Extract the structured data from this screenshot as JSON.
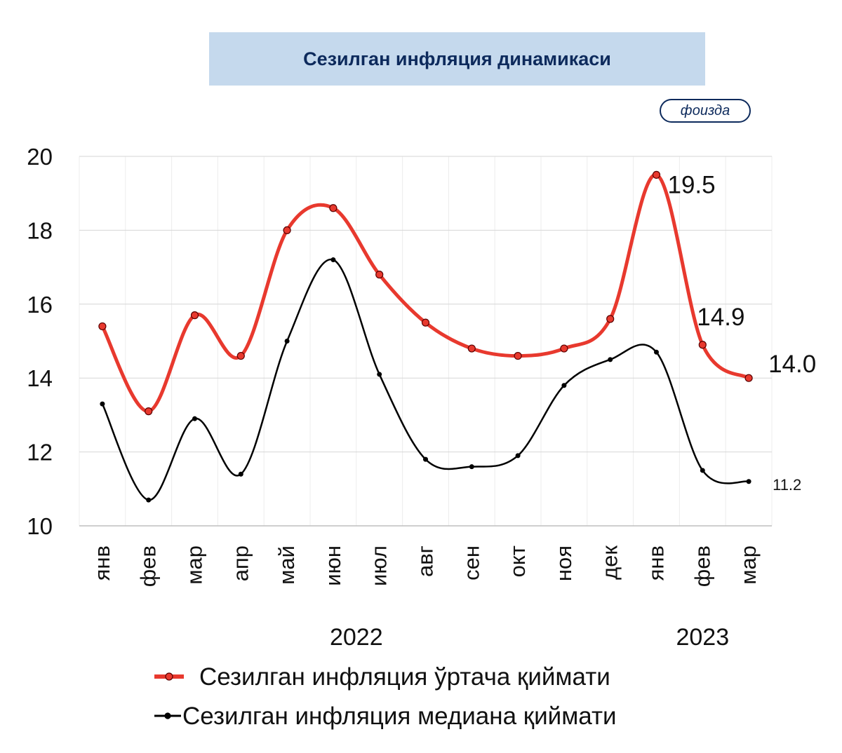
{
  "header": {
    "title": "Сезилган инфляция динамикаси",
    "unit_badge": "фоизда"
  },
  "chart_data": {
    "type": "line",
    "title": "Сезилган инфляция динамикаси",
    "unit": "фоизда",
    "categories": [
      "янв",
      "фев",
      "мар",
      "апр",
      "май",
      "июн",
      "июл",
      "авг",
      "сен",
      "окт",
      "ноя",
      "дек",
      "янв",
      "фев",
      "мар"
    ],
    "year_labels": [
      {
        "text": "2022",
        "span": [
          0,
          11
        ]
      },
      {
        "text": "2023",
        "span": [
          12,
          14
        ]
      }
    ],
    "ylim": [
      10,
      20
    ],
    "yticks": [
      10,
      12,
      14,
      16,
      18,
      20
    ],
    "grid": true,
    "legend_position": "bottom",
    "series": [
      {
        "name": "Сезилган инфляция ўртача қиймати",
        "color": "#e8392e",
        "values": [
          15.4,
          13.1,
          15.7,
          14.6,
          18.0,
          18.6,
          16.8,
          15.5,
          14.8,
          14.6,
          14.8,
          15.6,
          19.5,
          14.9,
          14.0
        ],
        "labels": [
          {
            "index": 12,
            "text": "19.5"
          },
          {
            "index": 13,
            "text": "14.9"
          },
          {
            "index": 14,
            "text": "14.0"
          }
        ]
      },
      {
        "name": "Сезилган инфляция медиана қиймати",
        "color": "#000000",
        "values": [
          13.3,
          10.7,
          12.9,
          11.4,
          15.0,
          17.2,
          14.1,
          11.8,
          11.6,
          11.9,
          13.8,
          14.5,
          14.7,
          11.5,
          11.2
        ],
        "labels": [
          {
            "index": 14,
            "text": "11.2"
          }
        ]
      }
    ]
  }
}
